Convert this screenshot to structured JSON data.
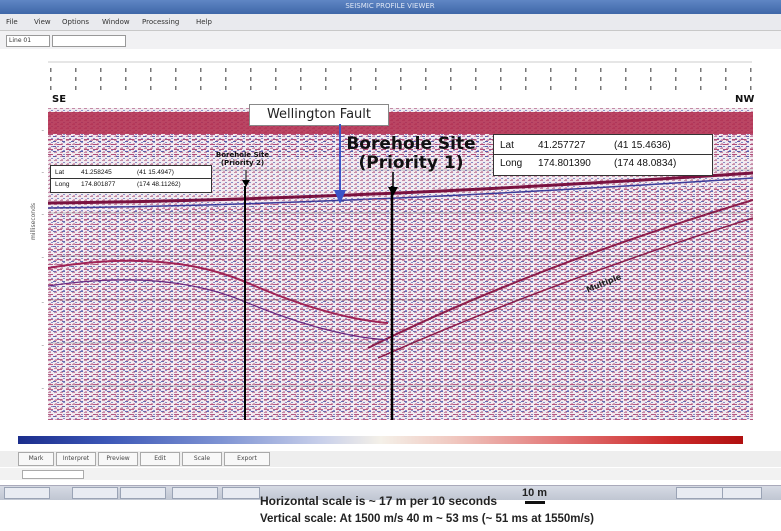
{
  "window": {
    "title": "SEISMIC PROFILE VIEWER"
  },
  "menu": [
    "File",
    "View",
    "Options",
    "Window",
    "Processing",
    "Help"
  ],
  "toolbar": {
    "combo1": "Line 01",
    "combo2": ""
  },
  "section": {
    "left_edge": "SE",
    "right_edge": "NW",
    "fault_label": "Wellington Fault",
    "borehole_priority1": {
      "line1": "Borehole Site",
      "line2": "(Priority 1)"
    },
    "borehole_priority2": {
      "line1": "Borehole Site",
      "line2": "(Priority 2)"
    },
    "multiple_label": "Multiple",
    "vertical_axis_label": "milliseconds"
  },
  "coords_priority1": {
    "lat_label": "Lat",
    "lat_value": "41.257727",
    "lat_dm": "(41 15.4636)",
    "long_label": "Long",
    "long_value": "174.801390",
    "long_dm": "(174 48.0834)"
  },
  "coords_priority2": {
    "lat_label": "Lat",
    "lat_value": "41.258245",
    "lat_dm": "(41 15.4947)",
    "long_label": "Long",
    "long_value": "174.801877",
    "long_dm": "(174 48.11262)"
  },
  "bottom_buttons": [
    "Mark",
    "Interpret",
    "Preview",
    "Edit",
    "Scale",
    "Export"
  ],
  "scales": {
    "horizontal": "Horizontal scale is ~ 17 m per 10 seconds",
    "bar_label": "10 m",
    "vertical": "Vertical scale: At 1500 m/s 40 m ~ 53 ms (~ 51 ms at 1550m/s)"
  },
  "colors": {
    "section_red": "#b0284a",
    "section_blue": "#3c3c9a",
    "fault_arrow": "#3b55c8",
    "background": "#f3eef2"
  }
}
